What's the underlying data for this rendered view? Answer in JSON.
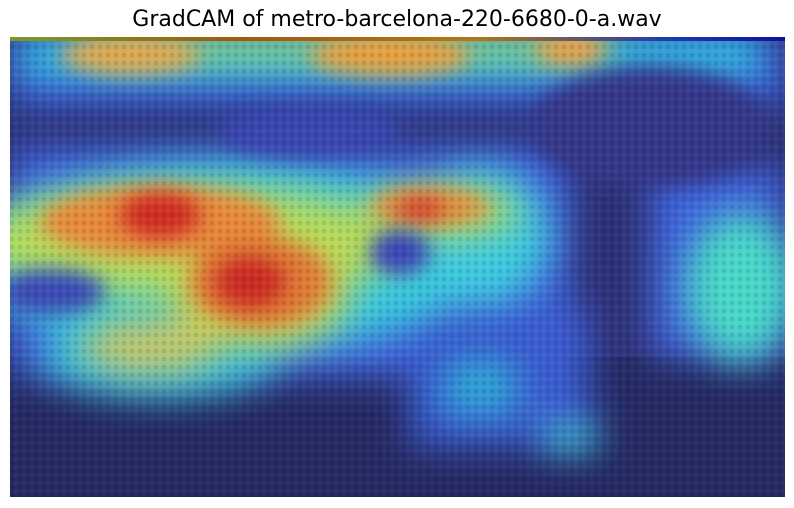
{
  "figure": {
    "title": "GradCAM of metro-barcelona-220-6680-0-a.wav",
    "image_description_icon": "gradcam-heatmap-overlay",
    "colormap": "jet",
    "colors": {
      "low": "#1f2a8c",
      "mid_low": "#2fb7d8",
      "mid": "#7fe07a",
      "mid_high": "#f0c040",
      "high": "#d62a1e"
    }
  }
}
